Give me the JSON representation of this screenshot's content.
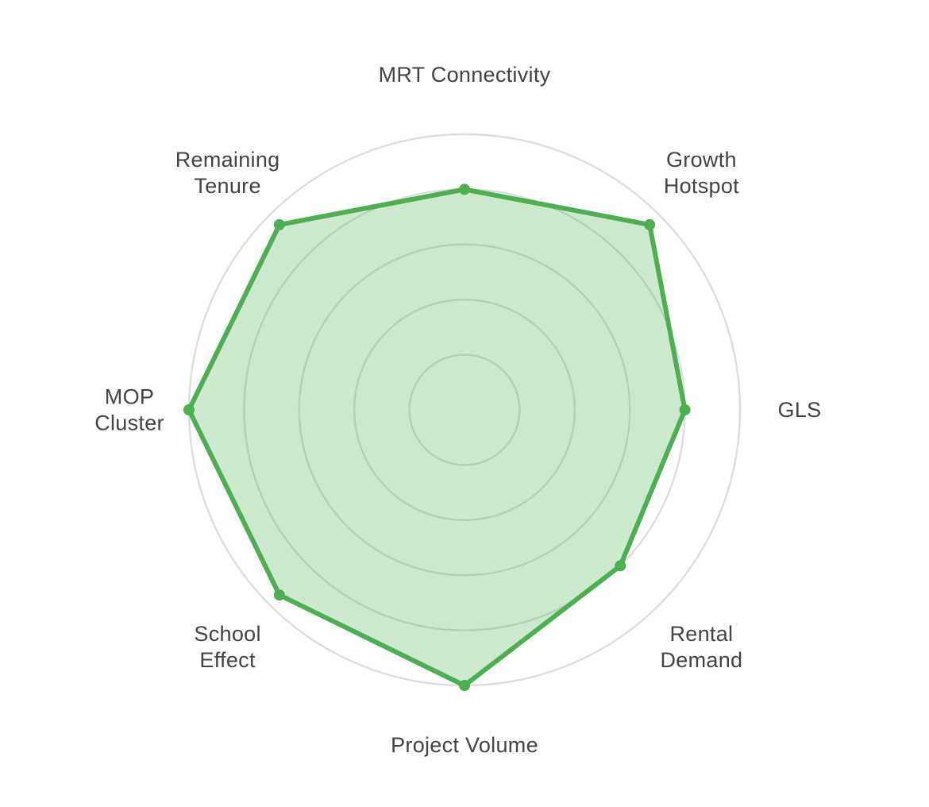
{
  "chart_data": {
    "type": "radar",
    "axes": [
      "MRT Connectivity",
      "Growth Hotspot",
      "GLS",
      "Rental Demand",
      "Project Volume",
      "School Effect",
      "MOP Cluster",
      "Remaining Tenure"
    ],
    "axis_label_lines": [
      [
        "MRT Connectivity"
      ],
      [
        "Growth",
        "Hotspot"
      ],
      [
        "GLS"
      ],
      [
        "Rental",
        "Demand"
      ],
      [
        "Project Volume"
      ],
      [
        "School",
        "Effect"
      ],
      [
        "MOP",
        "Cluster"
      ],
      [
        "Remaining",
        "Tenure"
      ]
    ],
    "series": [
      {
        "values": [
          80,
          95,
          80,
          80,
          100,
          95,
          100,
          95
        ]
      }
    ],
    "rlim": [
      0,
      100
    ],
    "ring_levels": [
      20,
      40,
      60,
      80,
      100
    ],
    "grid": true,
    "legend": "none",
    "colors": {
      "line": "#4caf50",
      "fill": "rgba(76, 175, 80, 0.28)",
      "grid": "#dedede",
      "label": "#444444"
    }
  }
}
